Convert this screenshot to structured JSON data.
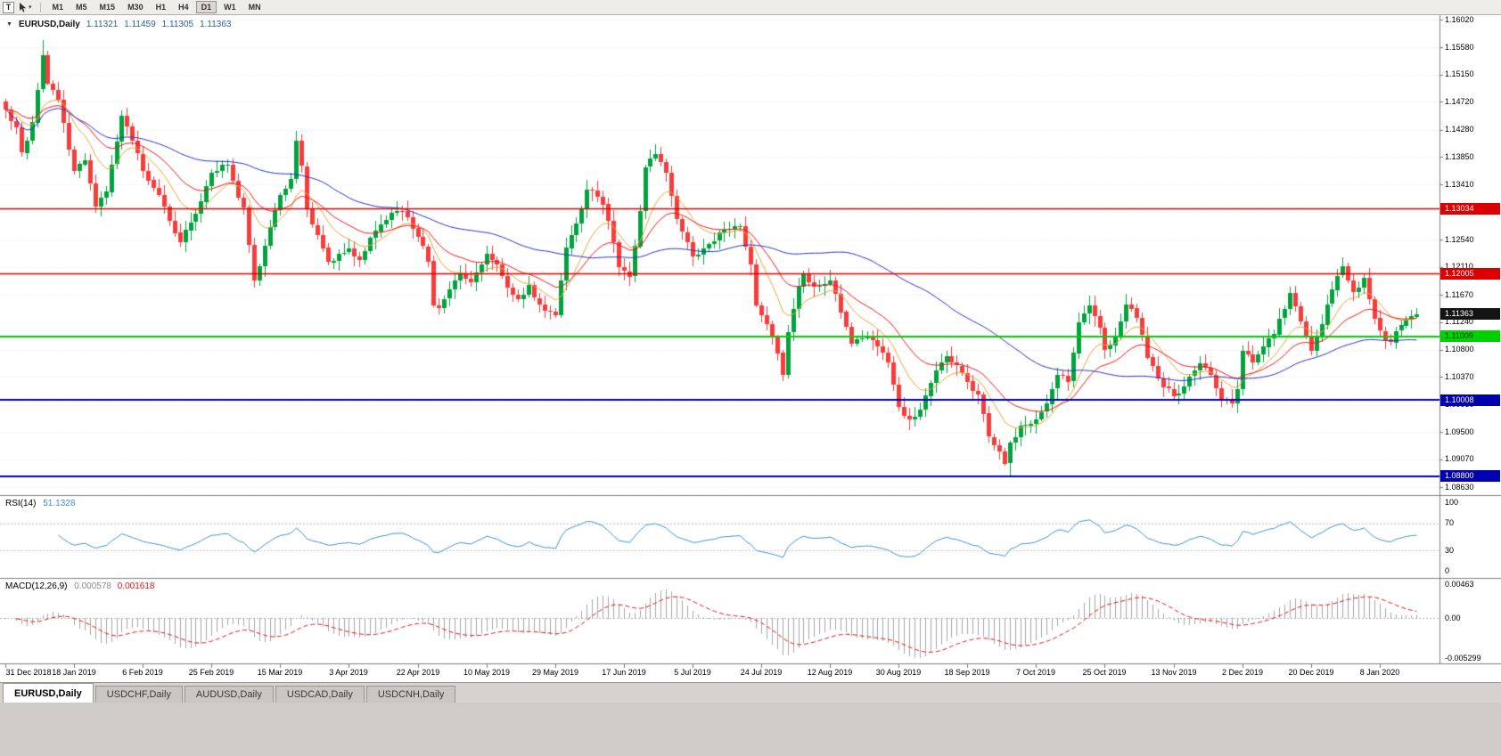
{
  "toolbar": {
    "text_tool_label": "T",
    "timeframes": [
      "M1",
      "M5",
      "M15",
      "M30",
      "H1",
      "H4",
      "D1",
      "W1",
      "MN"
    ],
    "active_timeframe": "D1"
  },
  "chart": {
    "symbol_period": "EURUSD,Daily",
    "ohlc": {
      "open": "1.11321",
      "high": "1.11459",
      "low": "1.11305",
      "close": "1.11363"
    }
  },
  "price_axis": {
    "ticks": [
      "1.16020",
      "1.15580",
      "1.15150",
      "1.14720",
      "1.14280",
      "1.13850",
      "1.13410",
      "1.12980",
      "1.12540",
      "1.12110",
      "1.11670",
      "1.11240",
      "1.10800",
      "1.10370",
      "1.09930",
      "1.09500",
      "1.09070",
      "1.08630"
    ]
  },
  "date_axis": {
    "candles_per_label": 13,
    "labels": [
      "31 Dec 2018",
      "18 Jan 2019",
      "6 Feb 2019",
      "25 Feb 2019",
      "15 Mar 2019",
      "3 Apr 2019",
      "22 Apr 2019",
      "10 May 2019",
      "29 May 2019",
      "17 Jun 2019",
      "5 Jul 2019",
      "24 Jul 2019",
      "12 Aug 2019",
      "30 Aug 2019",
      "18 Sep 2019",
      "7 Oct 2019",
      "25 Oct 2019",
      "13 Nov 2019",
      "2 Dec 2019",
      "20 Dec 2019",
      "8 Jan 2020"
    ]
  },
  "rsi": {
    "label": "RSI(14)",
    "value": "51.1328",
    "axis": [
      {
        "text": "100",
        "value": 100
      },
      {
        "text": "70",
        "value": 70
      },
      {
        "text": "30",
        "value": 30
      },
      {
        "text": "0",
        "value": 0
      }
    ],
    "level_lines": [
      70,
      30
    ]
  },
  "macd": {
    "label": "MACD(12,26,9)",
    "main_value": "0.000578",
    "signal_value": "0.001618",
    "axis": [
      {
        "text": "0.00463",
        "value": 0.00463
      },
      {
        "text": "0.00",
        "value": 0
      },
      {
        "text": "-0.005299",
        "value": -0.005299
      }
    ]
  },
  "tabs": [
    {
      "label": "EURUSD,Daily",
      "active": true
    },
    {
      "label": "USDCHF,Daily",
      "active": false
    },
    {
      "label": "AUDUSD,Daily",
      "active": false
    },
    {
      "label": "USDCAD,Daily",
      "active": false
    },
    {
      "label": "USDCNH,Daily",
      "active": false
    }
  ],
  "chart_data": {
    "type": "candlestick",
    "symbol": "EURUSD",
    "timeframe": "Daily",
    "candle_count": 268,
    "y_axis": {
      "top_price": 1.1602,
      "bottom_price": 1.0863
    },
    "last_candle": {
      "open": 1.11321,
      "high": 1.11459,
      "low": 1.11305,
      "close": 1.11363
    },
    "extremes": {
      "high": [
        7,
        1.157
      ],
      "low": [
        190,
        1.0879
      ]
    },
    "price_anchors": [
      [
        0,
        1.146
      ],
      [
        2,
        1.1432
      ],
      [
        3,
        1.1392
      ],
      [
        5,
        1.144
      ],
      [
        7,
        1.1545
      ],
      [
        8,
        1.15
      ],
      [
        10,
        1.1475
      ],
      [
        13,
        1.1362
      ],
      [
        15,
        1.138
      ],
      [
        17,
        1.1306
      ],
      [
        19,
        1.133
      ],
      [
        22,
        1.145
      ],
      [
        24,
        1.141
      ],
      [
        26,
        1.1363
      ],
      [
        29,
        1.1325
      ],
      [
        32,
        1.1265
      ],
      [
        33,
        1.125
      ],
      [
        36,
        1.1295
      ],
      [
        39,
        1.136
      ],
      [
        42,
        1.1373
      ],
      [
        44,
        1.132
      ],
      [
        45,
        1.1305
      ],
      [
        47,
        1.119
      ],
      [
        49,
        1.1245
      ],
      [
        52,
        1.1325
      ],
      [
        54,
        1.135
      ],
      [
        55,
        1.141
      ],
      [
        56,
        1.137
      ],
      [
        57,
        1.1302
      ],
      [
        59,
        1.1262
      ],
      [
        61,
        1.1218
      ],
      [
        63,
        1.1232
      ],
      [
        65,
        1.124
      ],
      [
        67,
        1.1222
      ],
      [
        70,
        1.1268
      ],
      [
        72,
        1.1285
      ],
      [
        74,
        1.13
      ],
      [
        76,
        1.129
      ],
      [
        78,
        1.1258
      ],
      [
        80,
        1.122
      ],
      [
        81,
        1.115
      ],
      [
        82,
        1.1146
      ],
      [
        84,
        1.1175
      ],
      [
        86,
        1.12
      ],
      [
        88,
        1.1188
      ],
      [
        91,
        1.1232
      ],
      [
        93,
        1.1215
      ],
      [
        95,
        1.1178
      ],
      [
        97,
        1.116
      ],
      [
        99,
        1.1182
      ],
      [
        101,
        1.1152
      ],
      [
        103,
        1.114
      ],
      [
        104,
        1.1134
      ],
      [
        106,
        1.1241
      ],
      [
        108,
        1.128
      ],
      [
        110,
        1.1333
      ],
      [
        112,
        1.1322
      ],
      [
        113,
        1.131
      ],
      [
        115,
        1.125
      ],
      [
        116,
        1.121
      ],
      [
        118,
        1.1196
      ],
      [
        120,
        1.13
      ],
      [
        121,
        1.1369
      ],
      [
        123,
        1.139
      ],
      [
        125,
        1.136
      ],
      [
        127,
        1.1286
      ],
      [
        129,
        1.125
      ],
      [
        130,
        1.1227
      ],
      [
        132,
        1.124
      ],
      [
        134,
        1.1252
      ],
      [
        136,
        1.127
      ],
      [
        139,
        1.1276
      ],
      [
        141,
        1.1215
      ],
      [
        142,
        1.115
      ],
      [
        144,
        1.112
      ],
      [
        146,
        1.1075
      ],
      [
        147,
        1.104
      ],
      [
        148,
        1.1108
      ],
      [
        150,
        1.118
      ],
      [
        151,
        1.12
      ],
      [
        153,
        1.118
      ],
      [
        156,
        1.119
      ],
      [
        158,
        1.114
      ],
      [
        160,
        1.109
      ],
      [
        163,
        1.11
      ],
      [
        165,
        1.1085
      ],
      [
        167,
        1.106
      ],
      [
        169,
        1.099
      ],
      [
        171,
        1.097
      ],
      [
        173,
        1.0985
      ],
      [
        176,
        1.1048
      ],
      [
        178,
        1.107
      ],
      [
        180,
        1.1055
      ],
      [
        182,
        1.103
      ],
      [
        184,
        1.101
      ],
      [
        186,
        1.0942
      ],
      [
        188,
        1.092
      ],
      [
        189,
        1.09
      ],
      [
        190,
        1.0933
      ],
      [
        192,
        1.096
      ],
      [
        195,
        1.097
      ],
      [
        197,
        1.0995
      ],
      [
        199,
        1.104
      ],
      [
        201,
        1.103
      ],
      [
        203,
        1.1124
      ],
      [
        205,
        1.115
      ],
      [
        207,
        1.1115
      ],
      [
        208,
        1.108
      ],
      [
        210,
        1.11
      ],
      [
        212,
        1.1152
      ],
      [
        214,
        1.113
      ],
      [
        216,
        1.1068
      ],
      [
        218,
        1.1035
      ],
      [
        221,
        1.1007
      ],
      [
        223,
        1.1022
      ],
      [
        226,
        1.1058
      ],
      [
        228,
        1.104
      ],
      [
        230,
        1.1001
      ],
      [
        232,
        1.0995
      ],
      [
        233,
        1.1018
      ],
      [
        234,
        1.1078
      ],
      [
        236,
        1.106
      ],
      [
        238,
        1.1085
      ],
      [
        240,
        1.1105
      ],
      [
        243,
        1.117
      ],
      [
        245,
        1.1125
      ],
      [
        247,
        1.1078
      ],
      [
        249,
        1.112
      ],
      [
        251,
        1.1175
      ],
      [
        253,
        1.1212
      ],
      [
        255,
        1.1172
      ],
      [
        257,
        1.1194
      ],
      [
        259,
        1.113
      ],
      [
        260,
        1.111
      ],
      [
        262,
        1.1092
      ],
      [
        263,
        1.111
      ],
      [
        265,
        1.1128
      ],
      [
        267,
        1.11363
      ]
    ],
    "horizontal_lines": [
      {
        "price": 1.13034,
        "label": "1.13034",
        "color": "#dd0000",
        "text_color": "#ffffff",
        "width": 1.5
      },
      {
        "price": 1.12005,
        "label": "1.12005",
        "color": "#dd0000",
        "text_color": "#ffffff",
        "width": 1.5
      },
      {
        "price": 1.11009,
        "label": "1.11009",
        "color": "#00d000",
        "text_color": "#003300",
        "width": 2
      },
      {
        "price": 1.10008,
        "label": "1.10008",
        "color": "#0000b0",
        "text_color": "#ffffff",
        "width": 2
      },
      {
        "price": 1.088,
        "label": "1.08800",
        "color": "#0000b0",
        "text_color": "#ffffff",
        "width": 2
      }
    ],
    "current_price": {
      "value": 1.11363,
      "label": "1.11363",
      "bg": "#141414",
      "text_color": "#ffffff"
    },
    "moving_averages": [
      {
        "name": "ma-fast",
        "method": "ema",
        "period": 10,
        "color": "#e8a838"
      },
      {
        "name": "ma-mid",
        "method": "ema",
        "period": 21,
        "color": "#f01818"
      },
      {
        "name": "ma-slow",
        "method": "sma",
        "period": 55,
        "color": "#2733cc"
      }
    ],
    "indicators": {
      "rsi": {
        "period": 14,
        "current": 51.1328,
        "levels": [
          30,
          70
        ],
        "scale": [
          0,
          100
        ],
        "color": "#3e93d4"
      },
      "macd": {
        "fast": 12,
        "slow": 26,
        "signal": 9,
        "current_main": 0.000578,
        "current_signal": 0.001618,
        "scale_max": 0.00463,
        "scale_min": -0.005299,
        "histogram_color": "#a6a6a6",
        "signal_color": "#e01818"
      }
    },
    "colors": {
      "candle_up": "#00a33e",
      "candle_down": "#fa3b3b",
      "grid": "#e6e6e6",
      "panel_border": "#808080"
    }
  }
}
